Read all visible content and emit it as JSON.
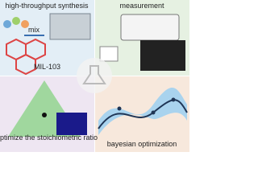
{
  "panels": [
    {
      "title": "high-throughput synthesis",
      "labels": [
        "mix",
        "MIL-103"
      ]
    },
    {
      "title": "measurement"
    },
    {
      "caption": "optimize the stoichiometric ratio"
    },
    {
      "caption": "bayesian optimization"
    }
  ]
}
